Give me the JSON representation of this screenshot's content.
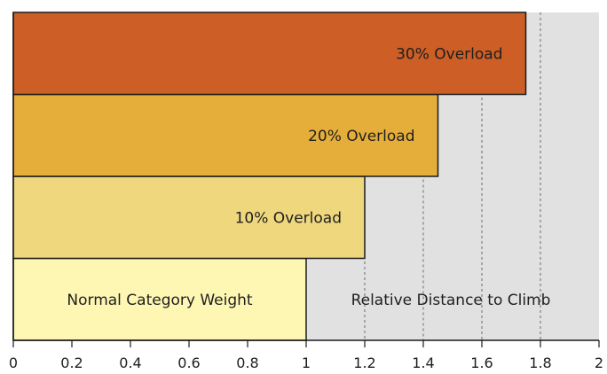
{
  "chart_data": {
    "type": "bar",
    "orientation": "horizontal",
    "title": "",
    "xlabel": "",
    "ylabel": "",
    "xlim": [
      0,
      2
    ],
    "x_ticks": [
      "0",
      "0.2",
      "0.4",
      "0.6",
      "0.8",
      "1",
      "1.2",
      "1.4",
      "1.6",
      "1.8",
      "2"
    ],
    "x_tick_values": [
      0,
      0.2,
      0.4,
      0.6,
      0.8,
      1,
      1.2,
      1.4,
      1.6,
      1.8,
      2
    ],
    "categories": [
      "Normal Category Weight",
      "10% Overload",
      "20% Overload",
      "30% Overload"
    ],
    "values": [
      1.0,
      1.2,
      1.45,
      1.75
    ],
    "colors": [
      "#fef7b4",
      "#efd77e",
      "#e5ae3a",
      "#cc5e26"
    ],
    "background_region": {
      "label": "Relative  Distance to Climb",
      "color": "#e1e1e1"
    },
    "reference_lines": [
      1.2,
      1.4,
      1.6,
      1.8
    ],
    "grid": false
  }
}
